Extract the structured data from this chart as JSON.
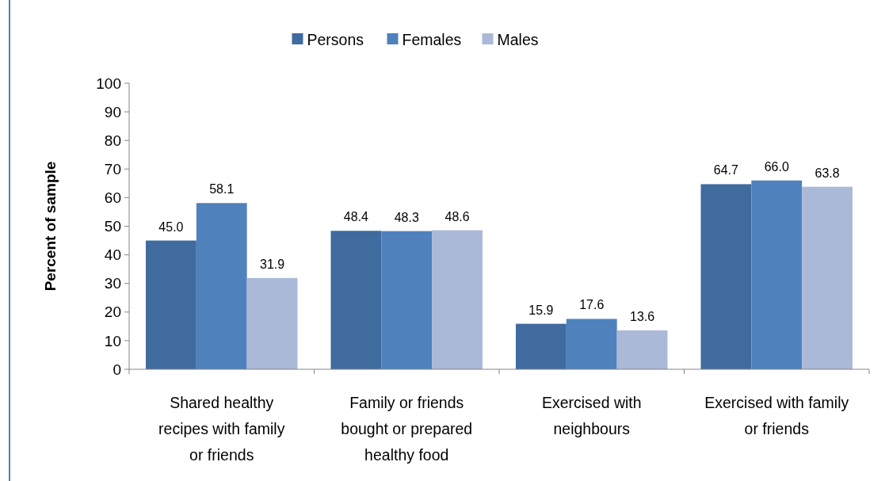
{
  "chart_data": {
    "type": "bar",
    "ylabel": "Percent of sample",
    "categories": [
      "Shared healthy recipes with family or friends",
      "Family or friends bought or prepared healthy food",
      "Exercised with neighbours",
      "Exercised with family or friends"
    ],
    "series": [
      {
        "name": "Persons",
        "color": "#3f6b9e",
        "values": [
          45.0,
          48.4,
          15.9,
          64.7
        ],
        "value_labels": [
          "45.0",
          "48.4",
          "15.9",
          "64.7"
        ]
      },
      {
        "name": "Females",
        "color": "#4f81bd",
        "values": [
          58.1,
          48.3,
          17.6,
          66.0
        ],
        "value_labels": [
          "58.1",
          "48.3",
          "17.6",
          "66.0"
        ]
      },
      {
        "name": "Males",
        "color": "#aab9d7",
        "values": [
          31.9,
          48.6,
          13.6,
          63.8
        ],
        "value_labels": [
          "31.9",
          "48.6",
          "13.6",
          "63.8"
        ]
      }
    ],
    "ylim": [
      0,
      100
    ],
    "yticks": [
      0,
      10,
      20,
      30,
      40,
      50,
      60,
      70,
      80,
      90,
      100
    ],
    "grid": false,
    "legend": "top"
  }
}
